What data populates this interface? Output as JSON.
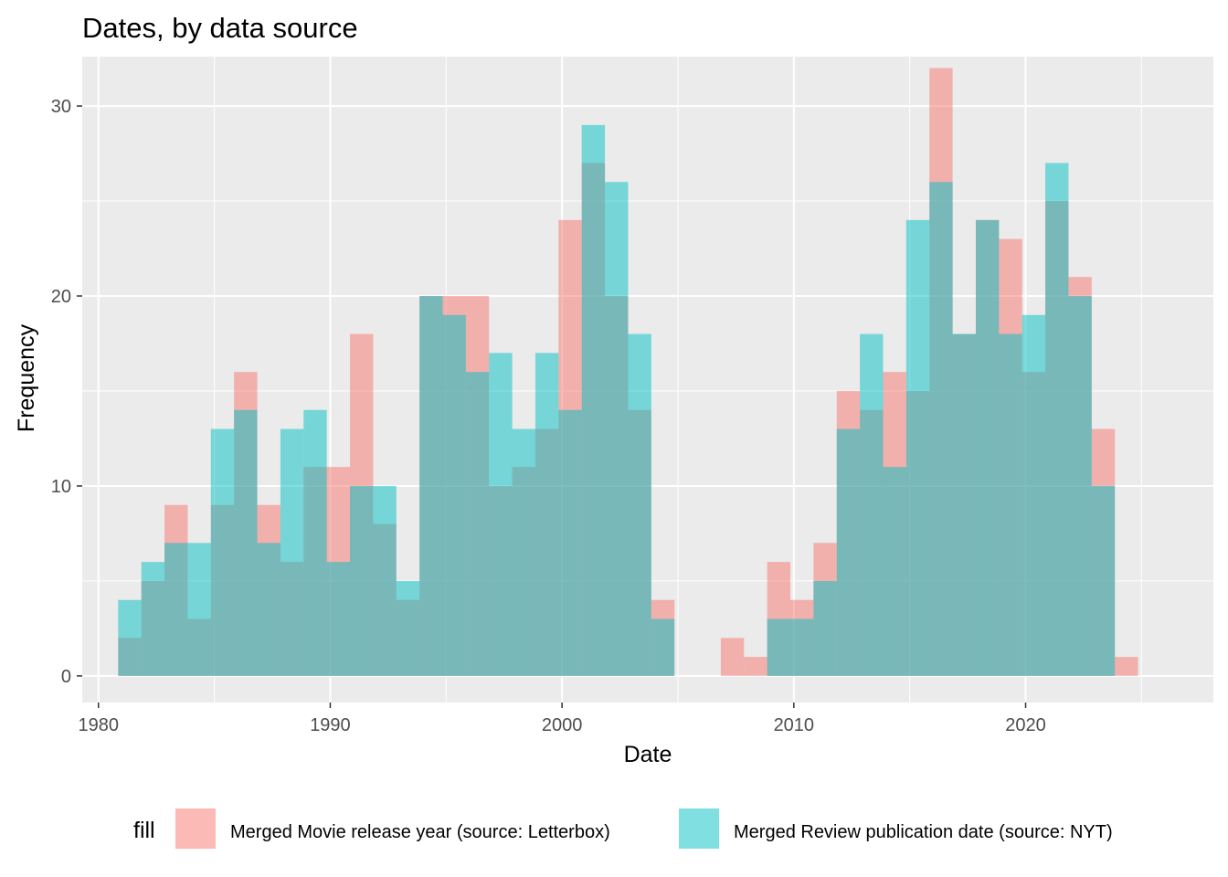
{
  "chart_data": {
    "type": "bar",
    "title": "Dates, by data source",
    "xlabel": "Date",
    "ylabel": "Frequency",
    "xlim": [
      1979.3,
      2028.1
    ],
    "ylim": [
      -1.4,
      32.6
    ],
    "x_ticks": [
      1980,
      1990,
      2000,
      2010,
      2020
    ],
    "y_ticks": [
      0,
      10,
      20,
      30
    ],
    "grid": true,
    "legend": {
      "title": "fill",
      "position": "bottom"
    },
    "bin_start": 1980.85,
    "bin_width": 1.0,
    "series": [
      {
        "name": "Merged Movie release year (source: Letterbox)",
        "color": "#F8766D",
        "values": [
          2,
          5,
          9,
          3,
          9,
          16,
          9,
          6,
          11,
          11,
          18,
          8,
          4,
          20,
          20,
          20,
          10,
          11,
          13,
          24,
          27,
          20,
          14,
          4,
          0,
          0,
          2,
          1,
          6,
          4,
          7,
          15,
          14,
          16,
          15,
          32,
          18,
          24,
          23,
          16,
          25,
          21,
          13,
          1
        ]
      },
      {
        "name": "Merged Review publication date (source: NYT)",
        "color": "#00BFC4",
        "values": [
          4,
          6,
          7,
          7,
          13,
          14,
          7,
          13,
          14,
          6,
          10,
          10,
          5,
          20,
          19,
          16,
          17,
          13,
          17,
          14,
          29,
          26,
          18,
          3,
          0,
          0,
          0,
          0,
          3,
          3,
          5,
          13,
          18,
          11,
          24,
          26,
          18,
          24,
          18,
          19,
          27,
          20,
          10,
          0
        ]
      }
    ]
  }
}
